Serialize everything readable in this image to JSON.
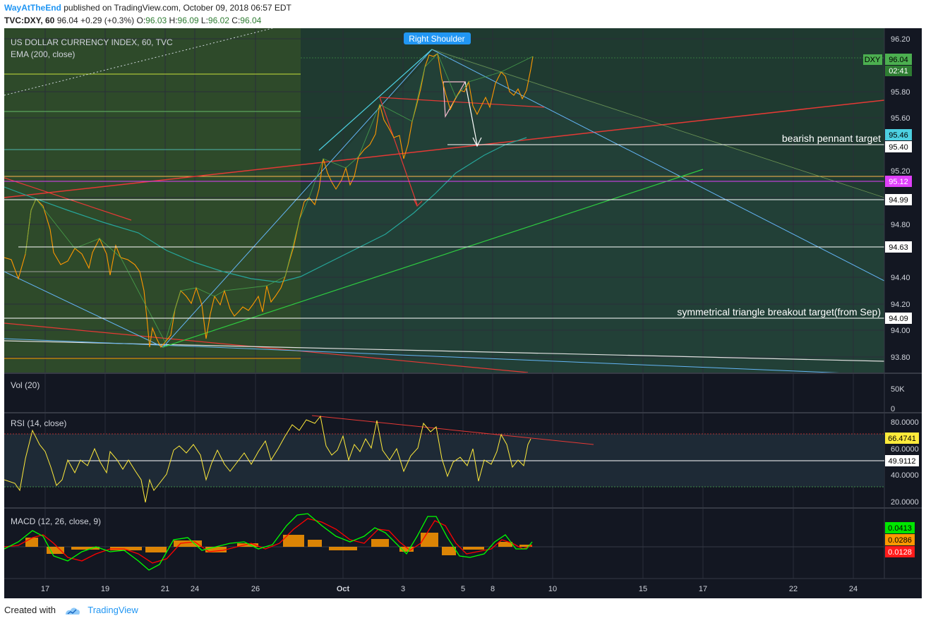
{
  "header": {
    "author": "WayAtTheEnd",
    "published": "published on TradingView.com, October 09, 2018 06:57 EDT",
    "symbol": "TVC:DXY, 60",
    "last": "96.04",
    "change": "+0.29 (+0.3%)",
    "o_label": "O:",
    "o_value": "96.03",
    "h_label": "H:",
    "h_value": "96.09",
    "l_label": "L:",
    "l_value": "96.02",
    "c_label": "C:",
    "c_value": "96.04"
  },
  "panes": {
    "main_title": "US DOLLAR CURRENCY INDEX, 60, TVC",
    "ema_label": "EMA (200, close)",
    "vol_label": "Vol (20)",
    "rsi_label": "RSI (14, close)",
    "macd_label": "MACD (12, 26, close, 9)"
  },
  "annotations": {
    "right_shoulder": "Right Shoulder",
    "pennant": "bearish pennant target",
    "triangle": "symmetrical triangle breakout target(from Sep)"
  },
  "price_badges": {
    "symbol": "DXY",
    "price": "96.04",
    "timer": "02:41",
    "ema": "95.46",
    "pennant": "95.40",
    "magenta": "95.12",
    "l1": "94.99",
    "l2": "94.63",
    "l3": "94.09"
  },
  "indicator_badges": {
    "vol_50k": "50K",
    "vol_0": "0",
    "rsi_value": "66.4741",
    "rsi_level": "49.9112",
    "macd_macd": "0.0413",
    "macd_hist": "0.0286",
    "macd_signal": "0.0128"
  },
  "footer": {
    "created_with": "Created with",
    "brand": "TradingView"
  },
  "colors": {
    "background": "#131722",
    "up": "#4caf50",
    "down": "#ff9800",
    "ema": "#26a69a",
    "rsi": "#ffeb3b",
    "macd": "#00ff00",
    "signal": "#ff0000",
    "magenta": "#e040fb"
  },
  "chart_data": [
    {
      "type": "line",
      "title": "US DOLLAR CURRENCY INDEX, 60, TVC",
      "series": [
        {
          "name": "DXY",
          "x": [
            "Sep 16",
            "Sep 17",
            "Sep 18",
            "Sep 19",
            "Sep 20",
            "Sep 21",
            "Sep 23",
            "Sep 24",
            "Sep 25",
            "Sep 26",
            "Sep 27",
            "Sep 28",
            "Sep 30",
            "Oct 1",
            "Oct 2",
            "Oct 3",
            "Oct 4",
            "Oct 5",
            "Oct 7",
            "Oct 8",
            "Oct 9"
          ],
          "values": [
            94.5,
            94.9,
            94.5,
            94.7,
            94.45,
            93.9,
            94.2,
            94.3,
            94.25,
            94.2,
            94.4,
            95.0,
            95.3,
            95.45,
            95.7,
            95.9,
            96.08,
            95.75,
            95.75,
            95.8,
            96.04
          ]
        },
        {
          "name": "EMA (200, close)",
          "x": [
            "Sep 16",
            "Sep 19",
            "Sep 21",
            "Sep 24",
            "Sep 26",
            "Sep 28",
            "Oct 1",
            "Oct 3",
            "Oct 5",
            "Oct 8",
            "Oct 9"
          ],
          "values": [
            95.1,
            94.8,
            94.65,
            94.5,
            94.42,
            94.6,
            94.95,
            95.15,
            95.35,
            95.42,
            95.46
          ]
        }
      ],
      "horizontal_levels": [
        95.46,
        95.4,
        95.12,
        94.99,
        94.63,
        94.09
      ],
      "x_ticks": [
        "17",
        "19",
        "21",
        "24",
        "26",
        "Oct",
        "3",
        "5",
        "8",
        "10",
        "15",
        "17",
        "22",
        "24"
      ],
      "ylim": [
        93.7,
        96.25
      ],
      "y_ticks": [
        "96.20",
        "96.00",
        "95.80",
        "95.60",
        "95.40",
        "95.20",
        "95.00",
        "94.80",
        "94.60",
        "94.40",
        "94.20",
        "94.00",
        "93.80"
      ]
    },
    {
      "type": "line",
      "title": "RSI (14, close)",
      "series": [
        {
          "name": "RSI",
          "x": [
            "Sep 16",
            "Sep 17",
            "Sep 18",
            "Sep 19",
            "Sep 20",
            "Sep 21",
            "Sep 23",
            "Sep 24",
            "Sep 25",
            "Sep 26",
            "Sep 27",
            "Sep 28",
            "Sep 30",
            "Oct 1",
            "Oct 2",
            "Oct 3",
            "Oct 4",
            "Oct 5",
            "Oct 7",
            "Oct 8",
            "Oct 9"
          ],
          "values": [
            40,
            70,
            48,
            50,
            52,
            28,
            45,
            55,
            50,
            52,
            56,
            75,
            72,
            65,
            78,
            50,
            78,
            40,
            50,
            68,
            66.47
          ]
        }
      ],
      "ylim": [
        15,
        85
      ],
      "y_ticks": [
        "80.0000",
        "60.0000",
        "40.0000",
        "20.0000"
      ],
      "levels": [
        70,
        30
      ]
    },
    {
      "type": "line",
      "title": "MACD (12, 26, close, 9)",
      "series": [
        {
          "name": "MACD",
          "values": [
            0.02,
            0.1,
            -0.05,
            0.02,
            -0.1,
            -0.2,
            0.05,
            0.08,
            -0.05,
            0.02,
            0.06,
            0.22,
            0.2,
            0.1,
            0.15,
            0.0,
            0.22,
            -0.05,
            -0.05,
            0.08,
            0.0413
          ]
        },
        {
          "name": "Signal",
          "values": [
            0.0,
            0.06,
            0.02,
            0.0,
            -0.04,
            -0.14,
            -0.05,
            0.05,
            0.0,
            0.0,
            0.04,
            0.16,
            0.21,
            0.14,
            0.13,
            0.06,
            0.16,
            0.05,
            -0.04,
            0.03,
            0.0128
          ]
        }
      ]
    }
  ]
}
